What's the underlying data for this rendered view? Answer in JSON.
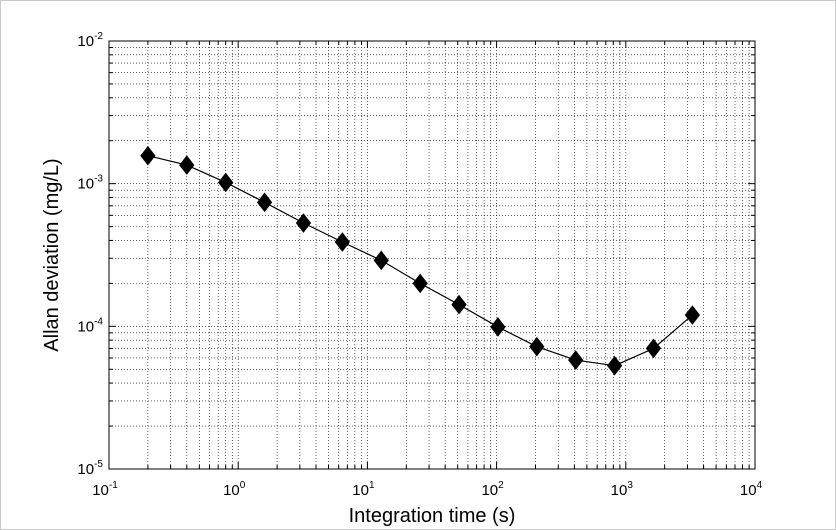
{
  "chart_data": {
    "type": "line",
    "title": "",
    "xlabel": "Integration time (s)",
    "ylabel": "Allan deviation (mg/L)",
    "xscale": "log",
    "yscale": "log",
    "xlim": [
      0.1,
      10000
    ],
    "ylim": [
      1e-05,
      0.01
    ],
    "grid": true,
    "grid_style": "dotted",
    "marker": "diamond",
    "line_color": "#000000",
    "marker_color": "#000000",
    "x_ticks": [
      {
        "base": "10",
        "exp": "-1",
        "value": 0.1
      },
      {
        "base": "10",
        "exp": "0",
        "value": 1
      },
      {
        "base": "10",
        "exp": "1",
        "value": 10
      },
      {
        "base": "10",
        "exp": "2",
        "value": 100
      },
      {
        "base": "10",
        "exp": "3",
        "value": 1000
      },
      {
        "base": "10",
        "exp": "4",
        "value": 10000
      }
    ],
    "y_ticks": [
      {
        "base": "10",
        "exp": "-5",
        "value": 1e-05
      },
      {
        "base": "10",
        "exp": "-4",
        "value": 0.0001
      },
      {
        "base": "10",
        "exp": "-3",
        "value": 0.001
      },
      {
        "base": "10",
        "exp": "-2",
        "value": 0.01
      }
    ],
    "series": [
      {
        "x": [
          0.2,
          0.4,
          0.8,
          1.6,
          3.2,
          6.4,
          12.8,
          25.6,
          51.2,
          102.4,
          204.8,
          409.6,
          819.2,
          1638.4,
          3276.8
        ],
        "y": [
          0.00157,
          0.00135,
          0.00102,
          0.00074,
          0.00053,
          0.00039,
          0.00029,
          0.0002,
          0.000142,
          9.9e-05,
          7.2e-05,
          5.8e-05,
          5.3e-05,
          7e-05,
          0.00012
        ]
      }
    ]
  }
}
